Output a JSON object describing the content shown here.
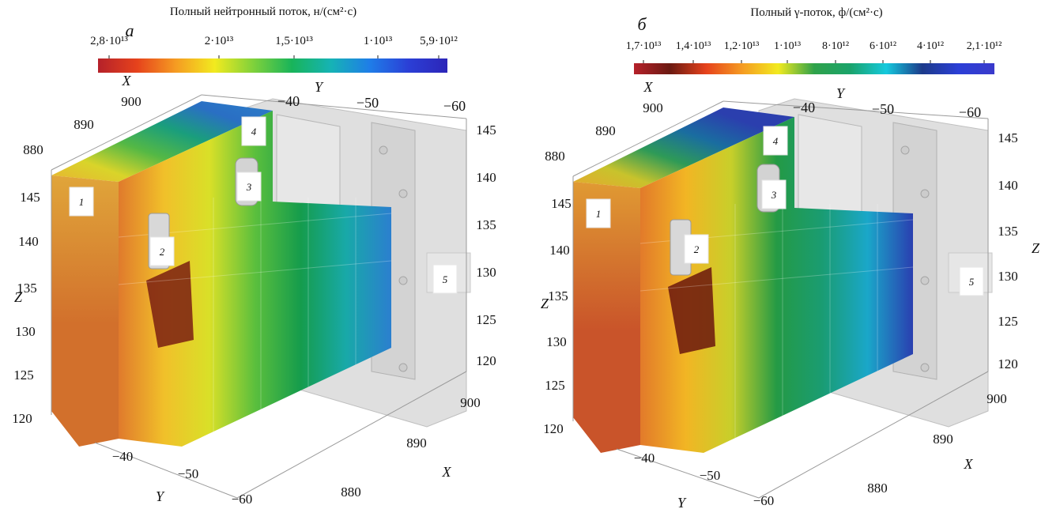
{
  "panels": [
    {
      "letter": "а",
      "colorbar": {
        "title": "Полный нейтронный поток, н/(см²·с)",
        "ticks": [
          "2,8·10¹³",
          "2·10¹³",
          "1,5·10¹³",
          "1·10¹³",
          "5,9·10¹²"
        ],
        "colors": [
          "#b5212a",
          "#e6421c",
          "#f59b22",
          "#f2ea1f",
          "#7fd13b",
          "#18b45a",
          "#16b3b5",
          "#1f7de8",
          "#2b3fd6",
          "#2c25b8"
        ]
      },
      "axes": {
        "x_label": "X",
        "y_label": "Y",
        "z_label": "Z",
        "x_ticks_top": [
          "880",
          "890",
          "900"
        ],
        "y_ticks_top": [
          "−40",
          "−50",
          "−60"
        ],
        "z_ticks_left": [
          "145",
          "140",
          "135",
          "130",
          "125",
          "120"
        ],
        "z_ticks_right": [
          "145",
          "140",
          "135",
          "130",
          "125",
          "120"
        ],
        "y_ticks_bottom": [
          "−40",
          "−50",
          "−60"
        ],
        "x_ticks_bottom": [
          "880",
          "890",
          "900"
        ]
      },
      "markers": [
        "1",
        "2",
        "3",
        "4",
        "5"
      ],
      "tint_front_top": "#e0a53a",
      "tint_front_mid": "#d2702c",
      "tint_dark": "#7a1e12",
      "tint_top": "#2c7ec8"
    },
    {
      "letter": "б",
      "colorbar": {
        "title": "Полный γ-поток, ф/(см²·с)",
        "ticks": [
          "1,7·10¹³",
          "1,4·10¹³",
          "1,2·10¹³",
          "1·10¹³",
          "8·10¹²",
          "6·10¹²",
          "4·10¹²",
          "2,1·10¹²"
        ],
        "colors": [
          "#b5212a",
          "#6b1a12",
          "#e6421c",
          "#f59b22",
          "#f2ea1f",
          "#2fa24a",
          "#1aa36b",
          "#15c9dd",
          "#1c3a8a",
          "#2b3fd6",
          "#3a3acb"
        ]
      },
      "axes": {
        "x_label": "X",
        "y_label": "Y",
        "z_label": "Z",
        "x_ticks_top": [
          "880",
          "890",
          "900"
        ],
        "y_ticks_top": [
          "−40",
          "−50",
          "−60"
        ],
        "z_ticks_left": [
          "145",
          "140",
          "135",
          "130",
          "125",
          "120"
        ],
        "z_ticks_right": [
          "145",
          "140",
          "135",
          "130",
          "125",
          "120"
        ],
        "y_ticks_bottom": [
          "−40",
          "−50",
          "−60"
        ],
        "x_ticks_bottom": [
          "880",
          "890",
          "900"
        ]
      },
      "markers": [
        "1",
        "2",
        "3",
        "4",
        "5"
      ],
      "tint_front_top": "#e09a33",
      "tint_front_mid": "#c9542a",
      "tint_dark": "#6a160e",
      "tint_top": "#2b3fae"
    }
  ]
}
